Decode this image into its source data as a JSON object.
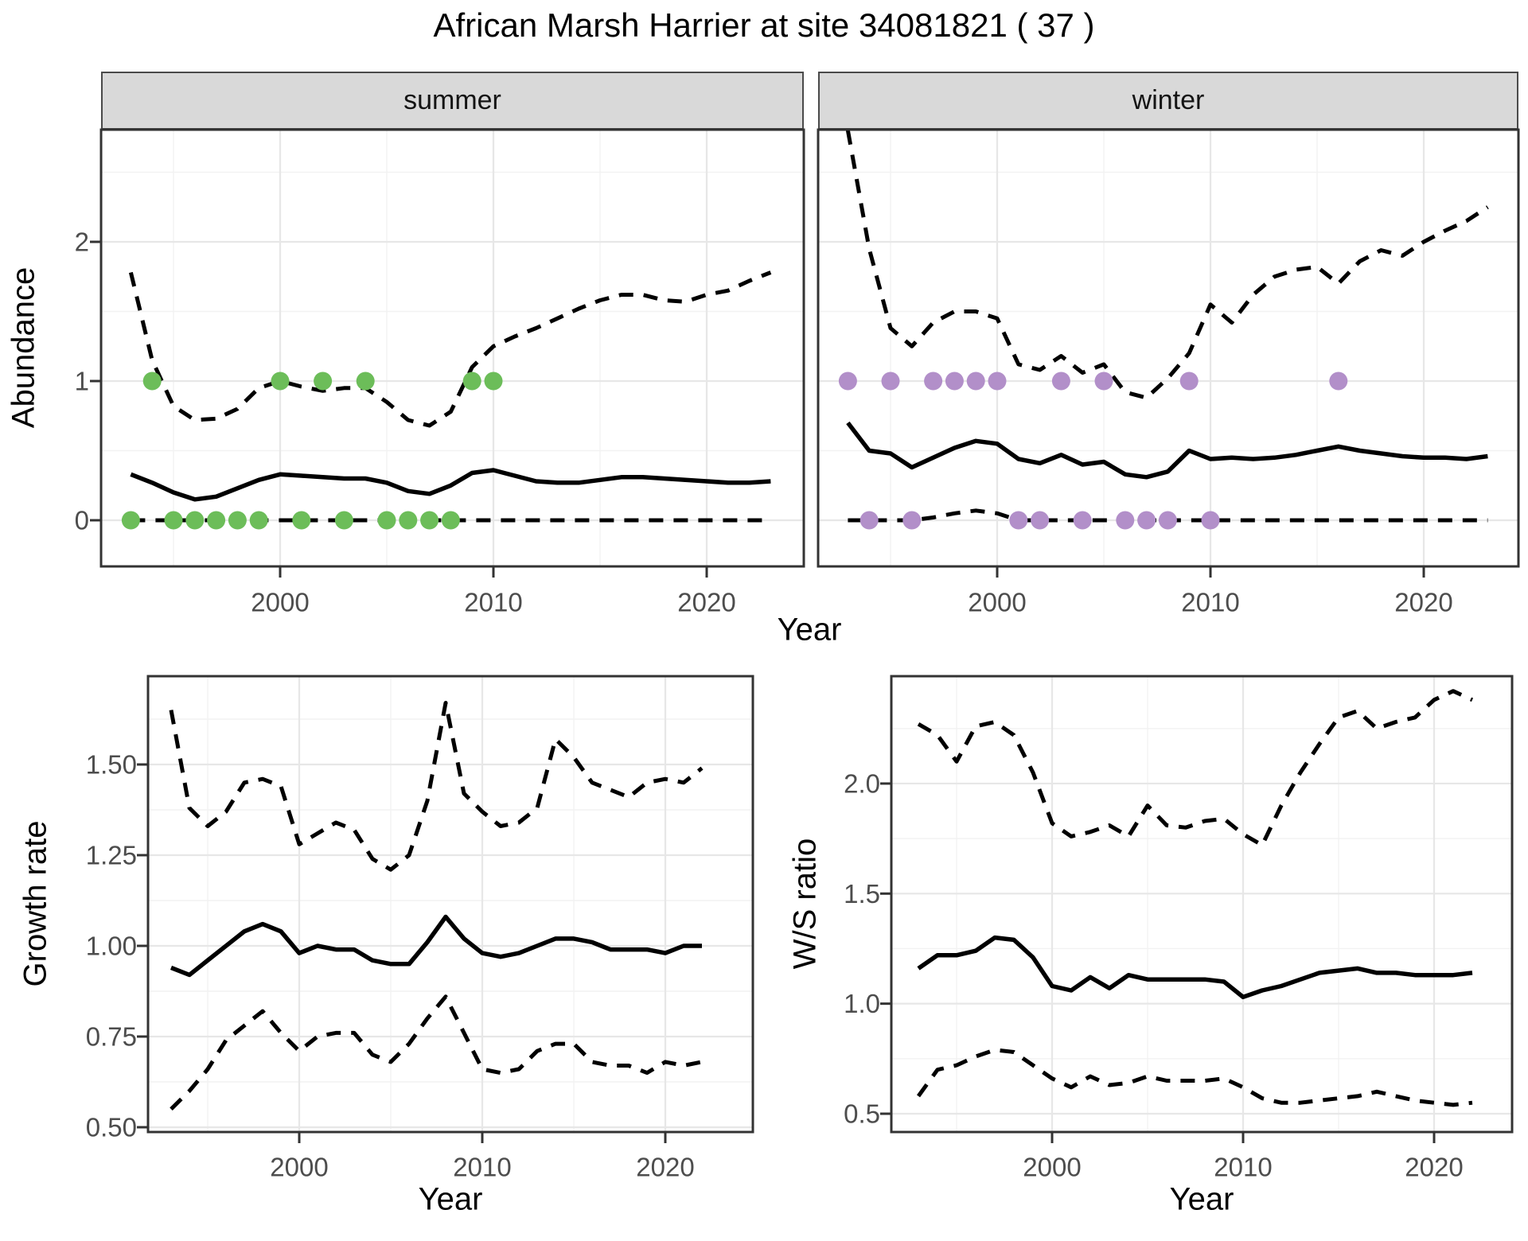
{
  "title": "African Marsh Harrier at site 34081821 ( 37 )",
  "facets": {
    "summer_label": "summer",
    "winter_label": "winter"
  },
  "axes": {
    "abundance_label": "Abundance",
    "year_label": "Year",
    "growth_label": "Growth rate",
    "ws_label": "W/S ratio"
  },
  "colors": {
    "summer_points": "#6cbd59",
    "winter_points": "#b28fc9",
    "line": "#000000",
    "axis_text": "#4d4d4d",
    "panel_border": "#333333",
    "strip_bg": "#d9d9d9",
    "grid_major": "#e7e7e7",
    "grid_minor": "#f2f2f2"
  },
  "chart_data": [
    {
      "id": "abundance_summer",
      "type": "line",
      "facet": "summer",
      "xlabel": "Year",
      "ylabel": "Abundance",
      "x": [
        1993,
        1994,
        1995,
        1996,
        1997,
        1998,
        1999,
        2000,
        2001,
        2002,
        2003,
        2004,
        2005,
        2006,
        2007,
        2008,
        2009,
        2010,
        2011,
        2012,
        2013,
        2014,
        2015,
        2016,
        2017,
        2018,
        2019,
        2020,
        2021,
        2022,
        2023
      ],
      "series": [
        {
          "name": "mean",
          "style": "solid",
          "values": [
            0.33,
            0.27,
            0.2,
            0.15,
            0.17,
            0.23,
            0.29,
            0.33,
            0.32,
            0.31,
            0.3,
            0.3,
            0.27,
            0.21,
            0.19,
            0.25,
            0.34,
            0.36,
            0.32,
            0.28,
            0.27,
            0.27,
            0.29,
            0.31,
            0.31,
            0.3,
            0.29,
            0.28,
            0.27,
            0.27,
            0.28
          ]
        },
        {
          "name": "upper_ci",
          "style": "dashed",
          "values": [
            1.78,
            1.15,
            0.82,
            0.72,
            0.73,
            0.8,
            0.95,
            1.0,
            0.96,
            0.93,
            0.95,
            0.95,
            0.85,
            0.72,
            0.68,
            0.78,
            1.1,
            1.25,
            1.32,
            1.38,
            1.45,
            1.52,
            1.58,
            1.62,
            1.62,
            1.58,
            1.57,
            1.62,
            1.65,
            1.72,
            1.78
          ]
        },
        {
          "name": "lower_ci",
          "style": "dashed",
          "values": [
            0,
            0,
            0,
            0,
            0,
            0,
            0,
            0,
            0,
            0,
            0,
            0,
            0,
            0,
            0,
            0,
            0,
            0,
            0,
            0,
            0,
            0,
            0,
            0,
            0,
            0,
            0,
            0,
            0,
            0,
            0
          ]
        }
      ],
      "observations": {
        "years": [
          1993,
          1994,
          1995,
          1996,
          1997,
          1998,
          1999,
          2000,
          2001,
          2002,
          2003,
          2004,
          2005,
          2006,
          2007,
          2008,
          2009,
          2010
        ],
        "values": [
          0,
          1,
          0,
          0,
          0,
          0,
          0,
          1,
          0,
          1,
          0,
          1,
          0,
          0,
          0,
          0,
          1,
          1
        ],
        "color_key": "summer_points"
      },
      "xlim": [
        1991.6,
        2024.4
      ],
      "ylim": [
        -0.06,
        2.85
      ],
      "xticks": {
        "major": [
          2000,
          2010,
          2020
        ],
        "minor": [
          1995,
          2005,
          2015
        ],
        "labels": [
          "2000",
          "2010",
          "2020"
        ]
      },
      "yticks": {
        "major": [
          0,
          1,
          2
        ],
        "minor": [
          0.5,
          1.5,
          2.5
        ],
        "labels": [
          "0",
          "1",
          "2"
        ]
      },
      "grid": true,
      "legend": "none"
    },
    {
      "id": "abundance_winter",
      "type": "line",
      "facet": "winter",
      "xlabel": "Year",
      "ylabel": "Abundance",
      "x": [
        1993,
        1994,
        1995,
        1996,
        1997,
        1998,
        1999,
        2000,
        2001,
        2002,
        2003,
        2004,
        2005,
        2006,
        2007,
        2008,
        2009,
        2010,
        2011,
        2012,
        2013,
        2014,
        2015,
        2016,
        2017,
        2018,
        2019,
        2020,
        2021,
        2022,
        2023
      ],
      "series": [
        {
          "name": "mean",
          "style": "solid",
          "values": [
            0.7,
            0.5,
            0.48,
            0.38,
            0.45,
            0.52,
            0.57,
            0.55,
            0.44,
            0.41,
            0.47,
            0.4,
            0.42,
            0.33,
            0.31,
            0.35,
            0.5,
            0.44,
            0.45,
            0.44,
            0.45,
            0.47,
            0.5,
            0.53,
            0.5,
            0.48,
            0.46,
            0.45,
            0.45,
            0.44,
            0.46
          ]
        },
        {
          "name": "upper_ci",
          "style": "dashed",
          "values": [
            2.8,
            1.95,
            1.38,
            1.25,
            1.42,
            1.5,
            1.5,
            1.45,
            1.12,
            1.08,
            1.18,
            1.06,
            1.12,
            0.92,
            0.88,
            1.02,
            1.2,
            1.55,
            1.42,
            1.62,
            1.75,
            1.8,
            1.82,
            1.7,
            1.86,
            1.94,
            1.9,
            2.0,
            2.08,
            2.15,
            2.25
          ]
        },
        {
          "name": "lower_ci",
          "style": "dashed",
          "values": [
            0,
            0,
            0,
            0,
            0.02,
            0.05,
            0.07,
            0.05,
            0,
            0,
            0,
            0,
            0,
            0,
            0,
            0,
            0,
            0,
            0,
            0,
            0,
            0,
            0,
            0,
            0,
            0,
            0,
            0,
            0,
            0,
            0
          ]
        }
      ],
      "observations": {
        "years": [
          1993,
          1994,
          1995,
          1996,
          1997,
          1998,
          1999,
          2000,
          2001,
          2002,
          2003,
          2004,
          2005,
          2006,
          2007,
          2008,
          2009,
          2010,
          2016
        ],
        "values": [
          1,
          0,
          1,
          0,
          1,
          1,
          1,
          1,
          0,
          0,
          1,
          0,
          1,
          0,
          0,
          0,
          1,
          0,
          1
        ],
        "color_key": "winter_points"
      },
      "xlim": [
        1991.6,
        2024.4
      ],
      "ylim": [
        -0.06,
        2.85
      ],
      "xticks": {
        "major": [
          2000,
          2010,
          2020
        ],
        "minor": [
          1995,
          2005,
          2015
        ],
        "labels": [
          "2000",
          "2010",
          "2020"
        ]
      },
      "yticks": {
        "major": [
          0,
          1,
          2
        ],
        "minor": [
          0.5,
          1.5,
          2.5
        ],
        "labels": [
          "0",
          "1",
          "2"
        ]
      },
      "grid": true,
      "legend": "none"
    },
    {
      "id": "growth_rate",
      "type": "line",
      "facet": "none",
      "xlabel": "Year",
      "ylabel": "Growth rate",
      "x": [
        1993,
        1994,
        1995,
        1996,
        1997,
        1998,
        1999,
        2000,
        2001,
        2002,
        2003,
        2004,
        2005,
        2006,
        2007,
        2008,
        2009,
        2010,
        2011,
        2012,
        2013,
        2014,
        2015,
        2016,
        2017,
        2018,
        2019,
        2020,
        2021,
        2022
      ],
      "series": [
        {
          "name": "mean",
          "style": "solid",
          "values": [
            0.94,
            0.92,
            0.96,
            1.0,
            1.04,
            1.06,
            1.04,
            0.98,
            1.0,
            0.99,
            0.99,
            0.96,
            0.95,
            0.95,
            1.01,
            1.08,
            1.02,
            0.98,
            0.97,
            0.98,
            1.0,
            1.02,
            1.02,
            1.01,
            0.99,
            0.99,
            0.99,
            0.98,
            1.0,
            1.0
          ]
        },
        {
          "name": "upper_ci",
          "style": "dashed",
          "values": [
            1.65,
            1.38,
            1.33,
            1.37,
            1.45,
            1.46,
            1.44,
            1.28,
            1.31,
            1.34,
            1.32,
            1.24,
            1.21,
            1.25,
            1.4,
            1.67,
            1.42,
            1.37,
            1.33,
            1.34,
            1.38,
            1.57,
            1.52,
            1.45,
            1.43,
            1.41,
            1.45,
            1.46,
            1.45,
            1.49
          ]
        },
        {
          "name": "lower_ci",
          "style": "dashed",
          "values": [
            0.55,
            0.6,
            0.66,
            0.74,
            0.78,
            0.82,
            0.76,
            0.71,
            0.75,
            0.76,
            0.76,
            0.7,
            0.68,
            0.73,
            0.8,
            0.86,
            0.76,
            0.66,
            0.65,
            0.66,
            0.71,
            0.73,
            0.73,
            0.68,
            0.67,
            0.67,
            0.65,
            0.68,
            0.67,
            0.68
          ]
        }
      ],
      "observations": {
        "years": [],
        "values": [],
        "color_key": "summer_points"
      },
      "xlim": [
        1991.7,
        2024.8
      ],
      "ylim": [
        0.48,
        1.74
      ],
      "xticks": {
        "major": [
          2000,
          2010,
          2020
        ],
        "minor": [
          1995,
          2005,
          2015
        ],
        "labels": [
          "2000",
          "2010",
          "2020"
        ]
      },
      "yticks": {
        "major": [
          0.5,
          0.75,
          1.0,
          1.25,
          1.5
        ],
        "minor": [
          0.625,
          0.875,
          1.125,
          1.375,
          1.625
        ],
        "labels": [
          "0.50",
          "0.75",
          "1.00",
          "1.25",
          "1.50"
        ]
      },
      "grid": true,
      "legend": "none"
    },
    {
      "id": "ws_ratio",
      "type": "line",
      "facet": "none",
      "xlabel": "Year",
      "ylabel": "W/S ratio",
      "x": [
        1993,
        1994,
        1995,
        1996,
        1997,
        1998,
        1999,
        2000,
        2001,
        2002,
        2003,
        2004,
        2005,
        2006,
        2007,
        2008,
        2009,
        2010,
        2011,
        2012,
        2013,
        2014,
        2015,
        2016,
        2017,
        2018,
        2019,
        2020,
        2021,
        2022
      ],
      "series": [
        {
          "name": "mean",
          "style": "solid",
          "values": [
            1.16,
            1.22,
            1.22,
            1.24,
            1.3,
            1.29,
            1.21,
            1.08,
            1.06,
            1.12,
            1.07,
            1.13,
            1.11,
            1.11,
            1.11,
            1.11,
            1.1,
            1.03,
            1.06,
            1.08,
            1.11,
            1.14,
            1.15,
            1.16,
            1.14,
            1.14,
            1.13,
            1.13,
            1.13,
            1.14
          ]
        },
        {
          "name": "upper_ci",
          "style": "dashed",
          "values": [
            2.27,
            2.22,
            2.1,
            2.26,
            2.28,
            2.22,
            2.05,
            1.82,
            1.76,
            1.78,
            1.81,
            1.76,
            1.9,
            1.81,
            1.8,
            1.83,
            1.84,
            1.77,
            1.72,
            1.9,
            2.05,
            2.18,
            2.3,
            2.33,
            2.25,
            2.28,
            2.3,
            2.38,
            2.42,
            2.38
          ]
        },
        {
          "name": "lower_ci",
          "style": "dashed",
          "values": [
            0.58,
            0.7,
            0.72,
            0.76,
            0.79,
            0.78,
            0.72,
            0.66,
            0.62,
            0.67,
            0.63,
            0.64,
            0.67,
            0.65,
            0.65,
            0.65,
            0.66,
            0.62,
            0.57,
            0.55,
            0.55,
            0.56,
            0.57,
            0.58,
            0.6,
            0.58,
            0.56,
            0.55,
            0.54,
            0.55
          ]
        }
      ],
      "observations": {
        "years": [],
        "values": [],
        "color_key": "winter_points"
      },
      "xlim": [
        1991.6,
        2024.1
      ],
      "ylim": [
        0.16,
        2.49
      ],
      "xticks": {
        "major": [
          2000,
          2010,
          2020
        ],
        "minor": [
          1995,
          2005,
          2015
        ],
        "labels": [
          "2000",
          "2010",
          "2020"
        ]
      },
      "yticks": {
        "major": [
          0.5,
          1.0,
          1.5,
          2.0
        ],
        "minor": [
          0.75,
          1.25,
          1.75,
          2.25
        ],
        "labels": [
          "0.5",
          "1.0",
          "1.5",
          "2.0"
        ]
      },
      "grid": true,
      "legend": "none"
    }
  ]
}
